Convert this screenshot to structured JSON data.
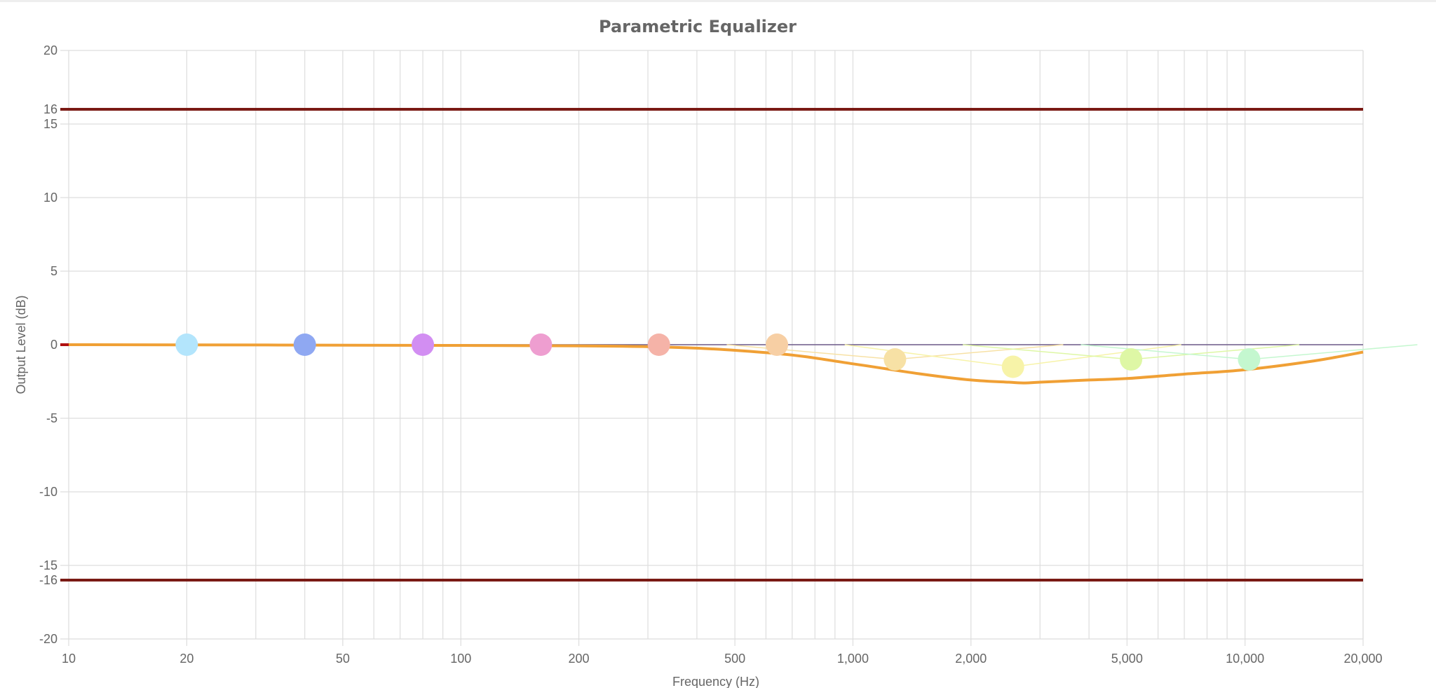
{
  "chart_data": {
    "type": "line",
    "title": "Parametric Equalizer",
    "xlabel": "Frequency (Hz)",
    "ylabel": "Output Level (dB)",
    "xscale": "log",
    "xlim": [
      10,
      20000
    ],
    "ylim": [
      -20,
      20
    ],
    "x_ticks": [
      {
        "value": 10,
        "label": "10"
      },
      {
        "value": 20,
        "label": "20"
      },
      {
        "value": 50,
        "label": "50"
      },
      {
        "value": 100,
        "label": "100"
      },
      {
        "value": 200,
        "label": "200"
      },
      {
        "value": 500,
        "label": "500"
      },
      {
        "value": 1000,
        "label": "1,000"
      },
      {
        "value": 2000,
        "label": "2,000"
      },
      {
        "value": 5000,
        "label": "5,000"
      },
      {
        "value": 10000,
        "label": "10,000"
      },
      {
        "value": 20000,
        "label": "20,000"
      }
    ],
    "y_ticks": [
      {
        "value": 20,
        "label": "20"
      },
      {
        "value": 16,
        "label": "16"
      },
      {
        "value": 15,
        "label": "15"
      },
      {
        "value": 10,
        "label": "10"
      },
      {
        "value": 5,
        "label": "5"
      },
      {
        "value": 0,
        "label": "0"
      },
      {
        "value": -5,
        "label": "-5"
      },
      {
        "value": -10,
        "label": "-10"
      },
      {
        "value": -15,
        "label": "-15"
      },
      {
        "value": -16,
        "label": "-16"
      },
      {
        "value": -20,
        "label": "-20"
      }
    ],
    "grid": true,
    "limits": [
      16,
      -16
    ],
    "bands": [
      {
        "freq": 20,
        "gain": 0,
        "color": "#b3e5fc"
      },
      {
        "freq": 40,
        "gain": 0,
        "color": "#8fa8f2"
      },
      {
        "freq": 80,
        "gain": 0,
        "color": "#d28ef2"
      },
      {
        "freq": 160,
        "gain": 0,
        "color": "#ee9ed0"
      },
      {
        "freq": 320,
        "gain": 0,
        "color": "#f5b3a8"
      },
      {
        "freq": 640,
        "gain": 0,
        "color": "#f7cfa4"
      },
      {
        "freq": 1280,
        "gain": -1,
        "color": "#f7e1a5"
      },
      {
        "freq": 2560,
        "gain": -1.5,
        "color": "#f7f3a8"
      },
      {
        "freq": 5120,
        "gain": -1,
        "color": "#def7a5"
      },
      {
        "freq": 10240,
        "gain": -1,
        "color": "#c4f7cf"
      }
    ],
    "response": {
      "color": "#f0a035",
      "x": [
        10,
        100,
        320,
        640,
        1000,
        1500,
        2000,
        2500,
        2750,
        3000,
        4000,
        5000,
        7000,
        10000,
        15000,
        20000
      ],
      "y": [
        0,
        -0.05,
        -0.15,
        -0.6,
        -1.3,
        -2.0,
        -2.4,
        -2.55,
        -2.6,
        -2.55,
        -2.4,
        -2.3,
        -2.0,
        -1.7,
        -1.1,
        -0.5
      ]
    },
    "limit_color": "#7a1a14"
  }
}
